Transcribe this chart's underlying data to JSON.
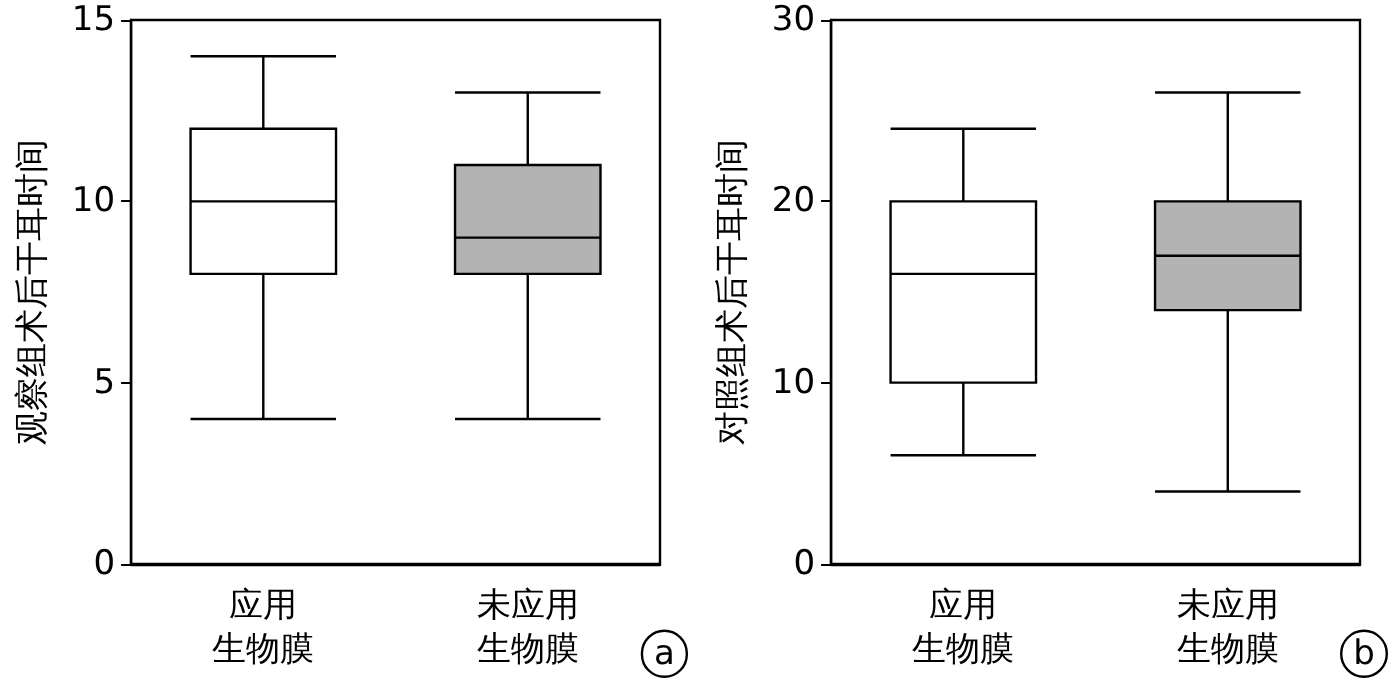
{
  "chart_data": [
    {
      "type": "box",
      "ylabel": "观察组术后干耳时间",
      "categories": [
        "应用生物膜",
        "未应用生物膜"
      ],
      "colors": [
        "#ffffff",
        "#b3b3b3"
      ],
      "ylim": [
        0,
        15
      ],
      "yticks": [
        0,
        5,
        10,
        15
      ],
      "grid": false,
      "annotations": [
        "a"
      ],
      "boxes": [
        {
          "low": 4,
          "q1": 8,
          "median": 10,
          "q3": 12,
          "high": 14
        },
        {
          "low": 4,
          "q1": 8,
          "median": 9,
          "q3": 11,
          "high": 13
        }
      ]
    },
    {
      "type": "box",
      "ylabel": "对照组术后干耳时间",
      "categories": [
        "应用生物膜",
        "未应用生物膜"
      ],
      "colors": [
        "#ffffff",
        "#b3b3b3"
      ],
      "ylim": [
        0,
        30
      ],
      "yticks": [
        0,
        10,
        20,
        30
      ],
      "grid": false,
      "annotations": [
        "b"
      ],
      "boxes": [
        {
          "low": 6,
          "q1": 10,
          "median": 16,
          "q3": 20,
          "high": 24
        },
        {
          "low": 4,
          "q1": 14,
          "median": 17,
          "q3": 20,
          "high": 26
        }
      ]
    }
  ]
}
